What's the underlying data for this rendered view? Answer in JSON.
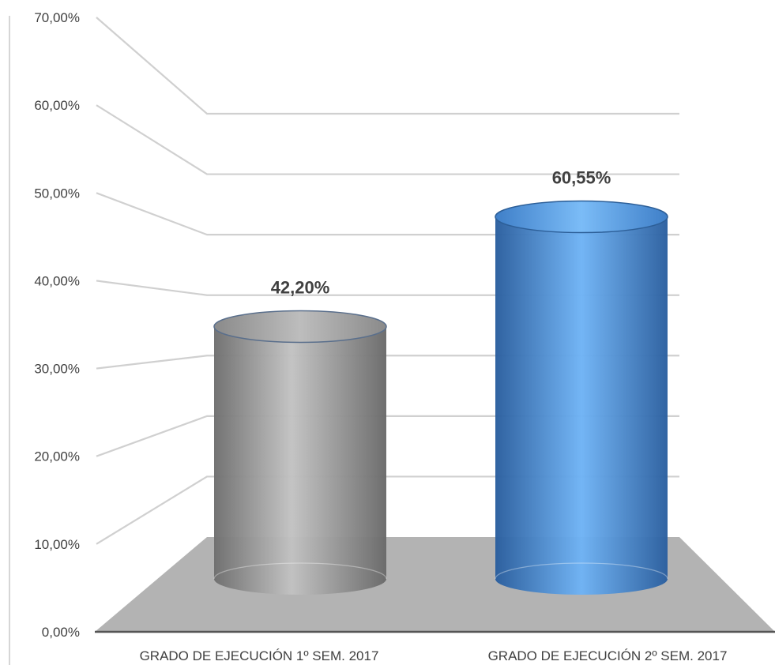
{
  "chart_data": {
    "type": "bar",
    "style": "3d-cylinder",
    "categories": [
      "GRADO DE EJECUCIÓN 1º SEM. 2017",
      "GRADO DE EJECUCIÓN 2º SEM. 2017"
    ],
    "values": [
      42.2,
      60.55
    ],
    "data_labels": [
      "42,20%",
      "60,55%"
    ],
    "y_ticks": [
      "0,00%",
      "10,00%",
      "20,00%",
      "30,00%",
      "40,00%",
      "50,00%",
      "60,00%",
      "70,00%"
    ],
    "ylim": [
      0,
      70
    ],
    "grid": true,
    "legend": "none",
    "title": "",
    "xlabel": "",
    "ylabel": "",
    "colors": {
      "bar1": "#8c8c8c",
      "bar2": "#3a78c0",
      "floor": "#b3b3b3",
      "grid": "#d0d0d0"
    }
  }
}
